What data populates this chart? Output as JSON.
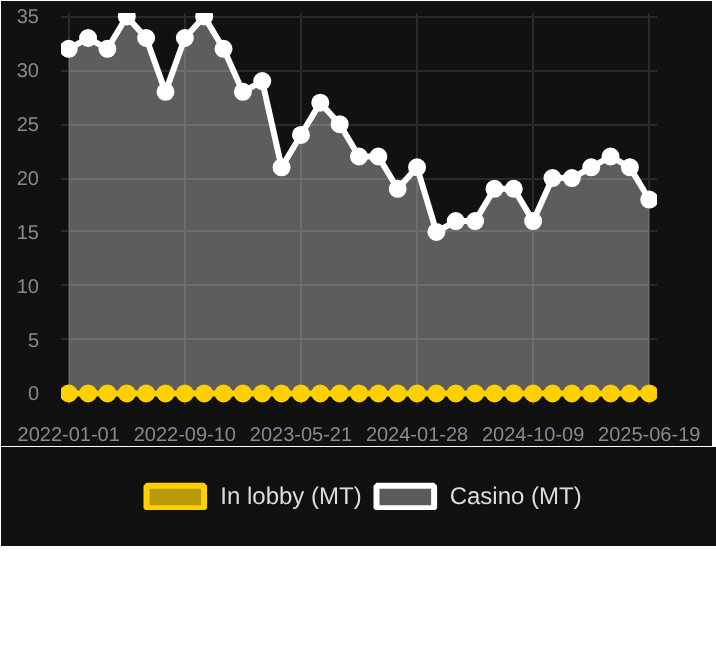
{
  "chart_data": {
    "type": "area",
    "categories": [
      "2022-01-01",
      null,
      null,
      null,
      null,
      null,
      "2022-09-10",
      null,
      null,
      null,
      null,
      null,
      "2023-05-21",
      null,
      null,
      null,
      null,
      null,
      "2024-01-28",
      null,
      null,
      null,
      null,
      null,
      "2024-10-09",
      null,
      null,
      null,
      null,
      null,
      "2025-06-19"
    ],
    "series": [
      {
        "name": "In lobby (MT)",
        "type": "line",
        "color": "#ffd000",
        "values": [
          0,
          0,
          0,
          0,
          0,
          0,
          0,
          0,
          0,
          0,
          0,
          0,
          0,
          0,
          0,
          0,
          0,
          0,
          0,
          0,
          0,
          0,
          0,
          0,
          0,
          0,
          0,
          0,
          0,
          0,
          0
        ]
      },
      {
        "name": "Casino (MT)",
        "color": "#ffffff",
        "values": [
          32,
          33,
          32,
          35,
          33,
          28,
          33,
          35,
          32,
          28,
          29,
          21,
          24,
          27,
          25,
          22,
          22,
          19,
          21,
          15,
          16,
          16,
          19,
          19,
          16,
          20,
          20,
          21,
          22,
          21,
          18
        ]
      }
    ],
    "ylim": [
      0,
      35
    ],
    "yticks": [
      0,
      5,
      10,
      15,
      20,
      25,
      30,
      35
    ],
    "grid": true,
    "legend": "bottom",
    "marker": "circle",
    "line_style": "solid"
  }
}
